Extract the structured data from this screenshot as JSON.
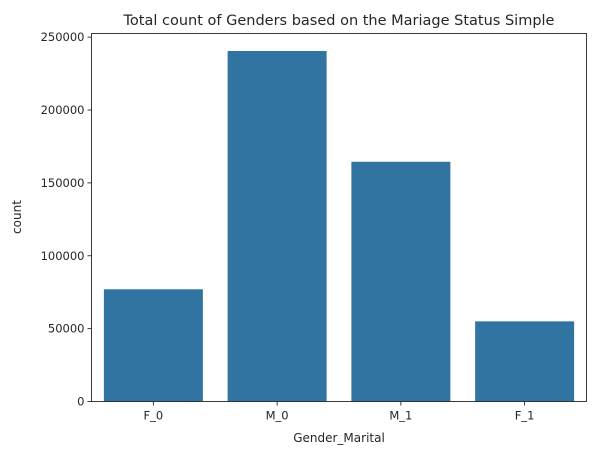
{
  "chart_data": {
    "type": "bar",
    "title": "Total count of Genders based on the Mariage Status Simple",
    "xlabel": "Gender_Marital",
    "ylabel": "count",
    "categories": [
      "F_0",
      "M_0",
      "M_1",
      "F_1"
    ],
    "values": [
      77000,
      240500,
      164500,
      55000
    ],
    "ylim": [
      0,
      252500
    ],
    "yticks": [
      0,
      50000,
      100000,
      150000,
      200000,
      250000
    ],
    "grid": false,
    "bar_color": "#3274a1"
  }
}
